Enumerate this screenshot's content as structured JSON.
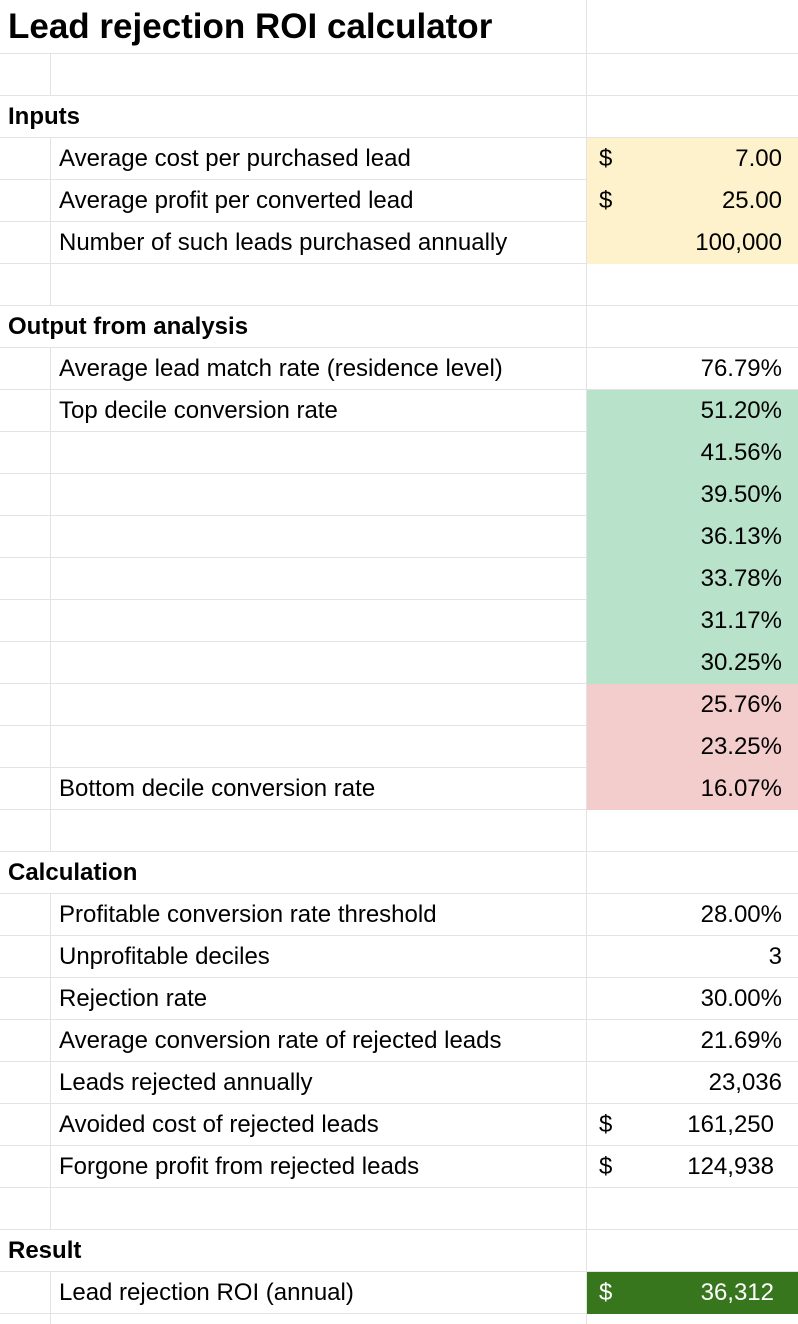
{
  "title": "Lead rejection ROI calculator",
  "inputs": {
    "heading": "Inputs",
    "cost_label": "Average cost per purchased lead",
    "cost_currency": "$",
    "cost_value": "7.00",
    "profit_label": "Average profit per converted lead",
    "profit_currency": "$",
    "profit_value": "25.00",
    "leads_label": "Number of such leads purchased annually",
    "leads_value": "100,000"
  },
  "output": {
    "heading": "Output from analysis",
    "match_label": "Average lead match rate (residence level)",
    "match_value": "76.79%",
    "top_label": "Top decile conversion rate",
    "bottom_label": "Bottom decile conversion rate",
    "deciles": [
      "51.20%",
      "41.56%",
      "39.50%",
      "36.13%",
      "33.78%",
      "31.17%",
      "30.25%",
      "25.76%",
      "23.25%",
      "16.07%"
    ]
  },
  "calculation": {
    "heading": "Calculation",
    "threshold_label": "Profitable conversion rate threshold",
    "threshold_value": "28.00%",
    "unprofitable_label": "Unprofitable deciles",
    "unprofitable_value": "3",
    "rejection_label": "Rejection rate",
    "rejection_value": "30.00%",
    "avg_conv_label": "Average conversion rate of rejected leads",
    "avg_conv_value": "21.69%",
    "leads_rejected_label": "Leads rejected annually",
    "leads_rejected_value": "23,036",
    "avoided_label": "Avoided cost of rejected leads",
    "avoided_currency": "$",
    "avoided_value": "161,250",
    "forgone_label": "Forgone profit from rejected leads",
    "forgone_currency": "$",
    "forgone_value": "124,938"
  },
  "result": {
    "heading": "Result",
    "roi_label": "Lead rejection ROI (annual)",
    "roi_currency": "$",
    "roi_value": "36,312"
  },
  "colors": {
    "input_fill": "#fdf2cc",
    "profitable_fill": "#b9e2cb",
    "unprofitable_fill": "#f3cccc",
    "result_fill": "#38761d"
  }
}
